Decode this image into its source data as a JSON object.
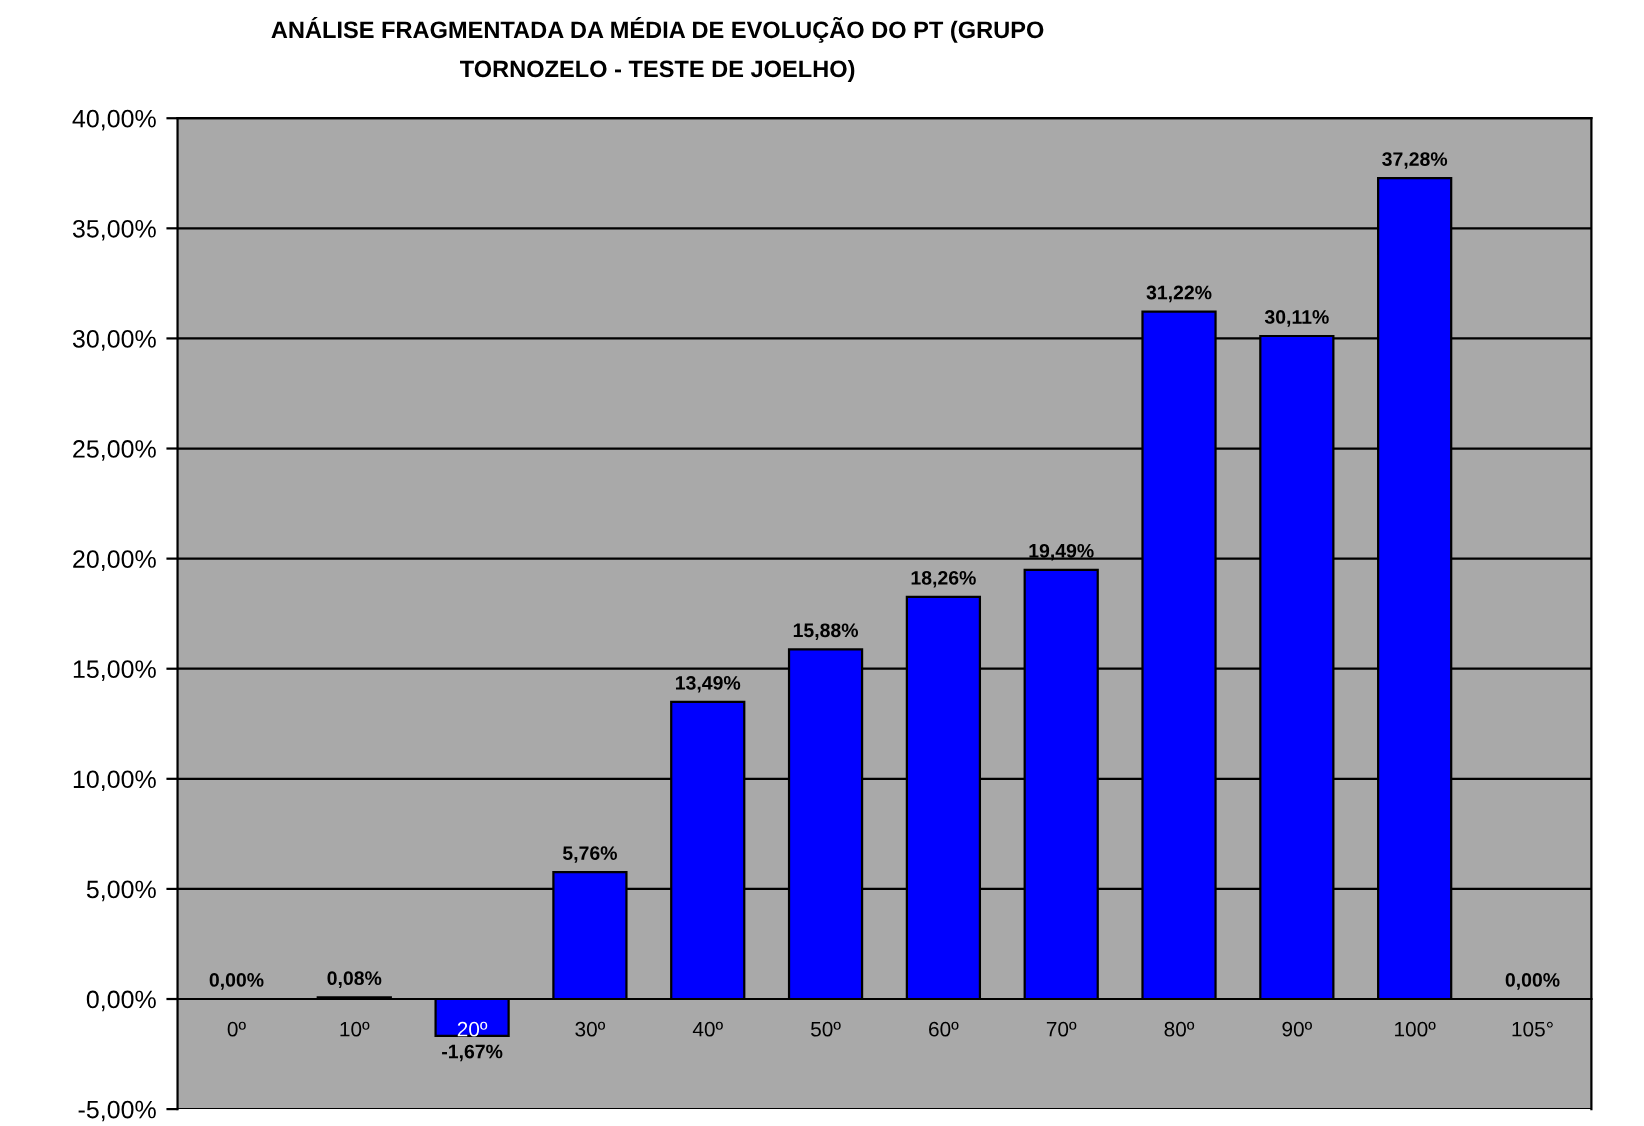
{
  "chart_data": {
    "type": "bar",
    "title": "ANÁLISE FRAGMENTADA DA MÉDIA DE EVOLUÇÃO DO PT (GRUPO\nTORNOZELO - TESTE DE JOELHO)",
    "categories": [
      "0º",
      "10º",
      "20º",
      "30º",
      "40º",
      "50º",
      "60º",
      "70º",
      "80º",
      "90º",
      "100º",
      "105°"
    ],
    "values": [
      0,
      0.08,
      -1.67,
      5.76,
      13.49,
      15.88,
      18.26,
      19.49,
      31.22,
      30.11,
      37.28,
      0
    ],
    "value_labels": [
      "0,00%",
      "0,08%",
      "-1,67%",
      "5,76%",
      "13,49%",
      "15,88%",
      "18,26%",
      "19,49%",
      "31,22%",
      "30,11%",
      "37,28%",
      "0,00%"
    ],
    "color": "#0000ff",
    "ylim": [
      -5,
      40
    ],
    "yticks": [
      {
        "value": -5,
        "label": "-5,00%"
      },
      {
        "value": 0,
        "label": "0,00%"
      },
      {
        "value": 5,
        "label": "5,00%"
      },
      {
        "value": 10,
        "label": "10,00%"
      },
      {
        "value": 15,
        "label": "15,00%"
      },
      {
        "value": 20,
        "label": "20,00%"
      },
      {
        "value": 25,
        "label": "25,00%"
      },
      {
        "value": 30,
        "label": "30,00%"
      },
      {
        "value": 35,
        "label": "35,00%"
      },
      {
        "value": 40,
        "label": "40,00%"
      }
    ],
    "grid": "y"
  }
}
